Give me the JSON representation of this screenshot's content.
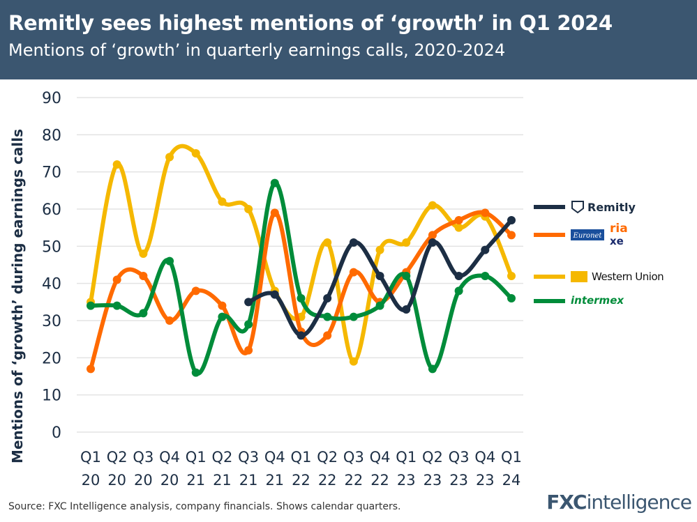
{
  "header": {
    "title": "Remitly sees highest mentions of ‘growth’ in Q1 2024",
    "subtitle": "Mentions of ‘growth’ in quarterly earnings calls, 2020-2024"
  },
  "footer": {
    "source": "Source: FXC Intelligence analysis, company financials. Shows calendar quarters.",
    "brand_bold": "FXC",
    "brand_light": "intelligence"
  },
  "chart_data": {
    "type": "line",
    "title": "",
    "xlabel": "",
    "ylabel": "Mentions of ‘growth’ during earnings calls",
    "ylim": [
      0,
      90
    ],
    "yticks": [
      0,
      10,
      20,
      30,
      40,
      50,
      60,
      70,
      80,
      90
    ],
    "grid": true,
    "legend_placement": "right",
    "categories": [
      [
        "Q1",
        "20"
      ],
      [
        "Q2",
        "20"
      ],
      [
        "Q3",
        "20"
      ],
      [
        "Q4",
        "20"
      ],
      [
        "Q1",
        "21"
      ],
      [
        "Q2",
        "21"
      ],
      [
        "Q3",
        "21"
      ],
      [
        "Q4",
        "21"
      ],
      [
        "Q1",
        "22"
      ],
      [
        "Q2",
        "22"
      ],
      [
        "Q3",
        "22"
      ],
      [
        "Q4",
        "22"
      ],
      [
        "Q1",
        "23"
      ],
      [
        "Q2",
        "23"
      ],
      [
        "Q3",
        "23"
      ],
      [
        "Q4",
        "23"
      ],
      [
        "Q1",
        "24"
      ]
    ],
    "series": [
      {
        "name": "Western Union",
        "logo_text": [
          "Western Union"
        ],
        "color": "#f5b800",
        "values": [
          35,
          72,
          48,
          74,
          75,
          62,
          60,
          38,
          31,
          51,
          19,
          49,
          51,
          61,
          55,
          58,
          42
        ]
      },
      {
        "name": "Euronet / ria / xe",
        "logo_text": [
          "Euronet",
          "ria",
          "xe"
        ],
        "color": "#ff6a00",
        "values": [
          17,
          41,
          42,
          30,
          38,
          34,
          22,
          59,
          27,
          26,
          43,
          35,
          43,
          53,
          57,
          59,
          53
        ]
      },
      {
        "name": "Intermex",
        "logo_text": [
          "intermex"
        ],
        "color": "#008c3a",
        "values": [
          34,
          34,
          32,
          46,
          16,
          31,
          29,
          67,
          36,
          31,
          31,
          34,
          42,
          17,
          38,
          42,
          36
        ]
      },
      {
        "name": "Remitly",
        "logo_text": [
          "Remitly"
        ],
        "color": "#1c2e44",
        "values": [
          null,
          null,
          null,
          null,
          null,
          null,
          35,
          37,
          26,
          36,
          51,
          42,
          33,
          51,
          42,
          49,
          57
        ]
      }
    ]
  }
}
